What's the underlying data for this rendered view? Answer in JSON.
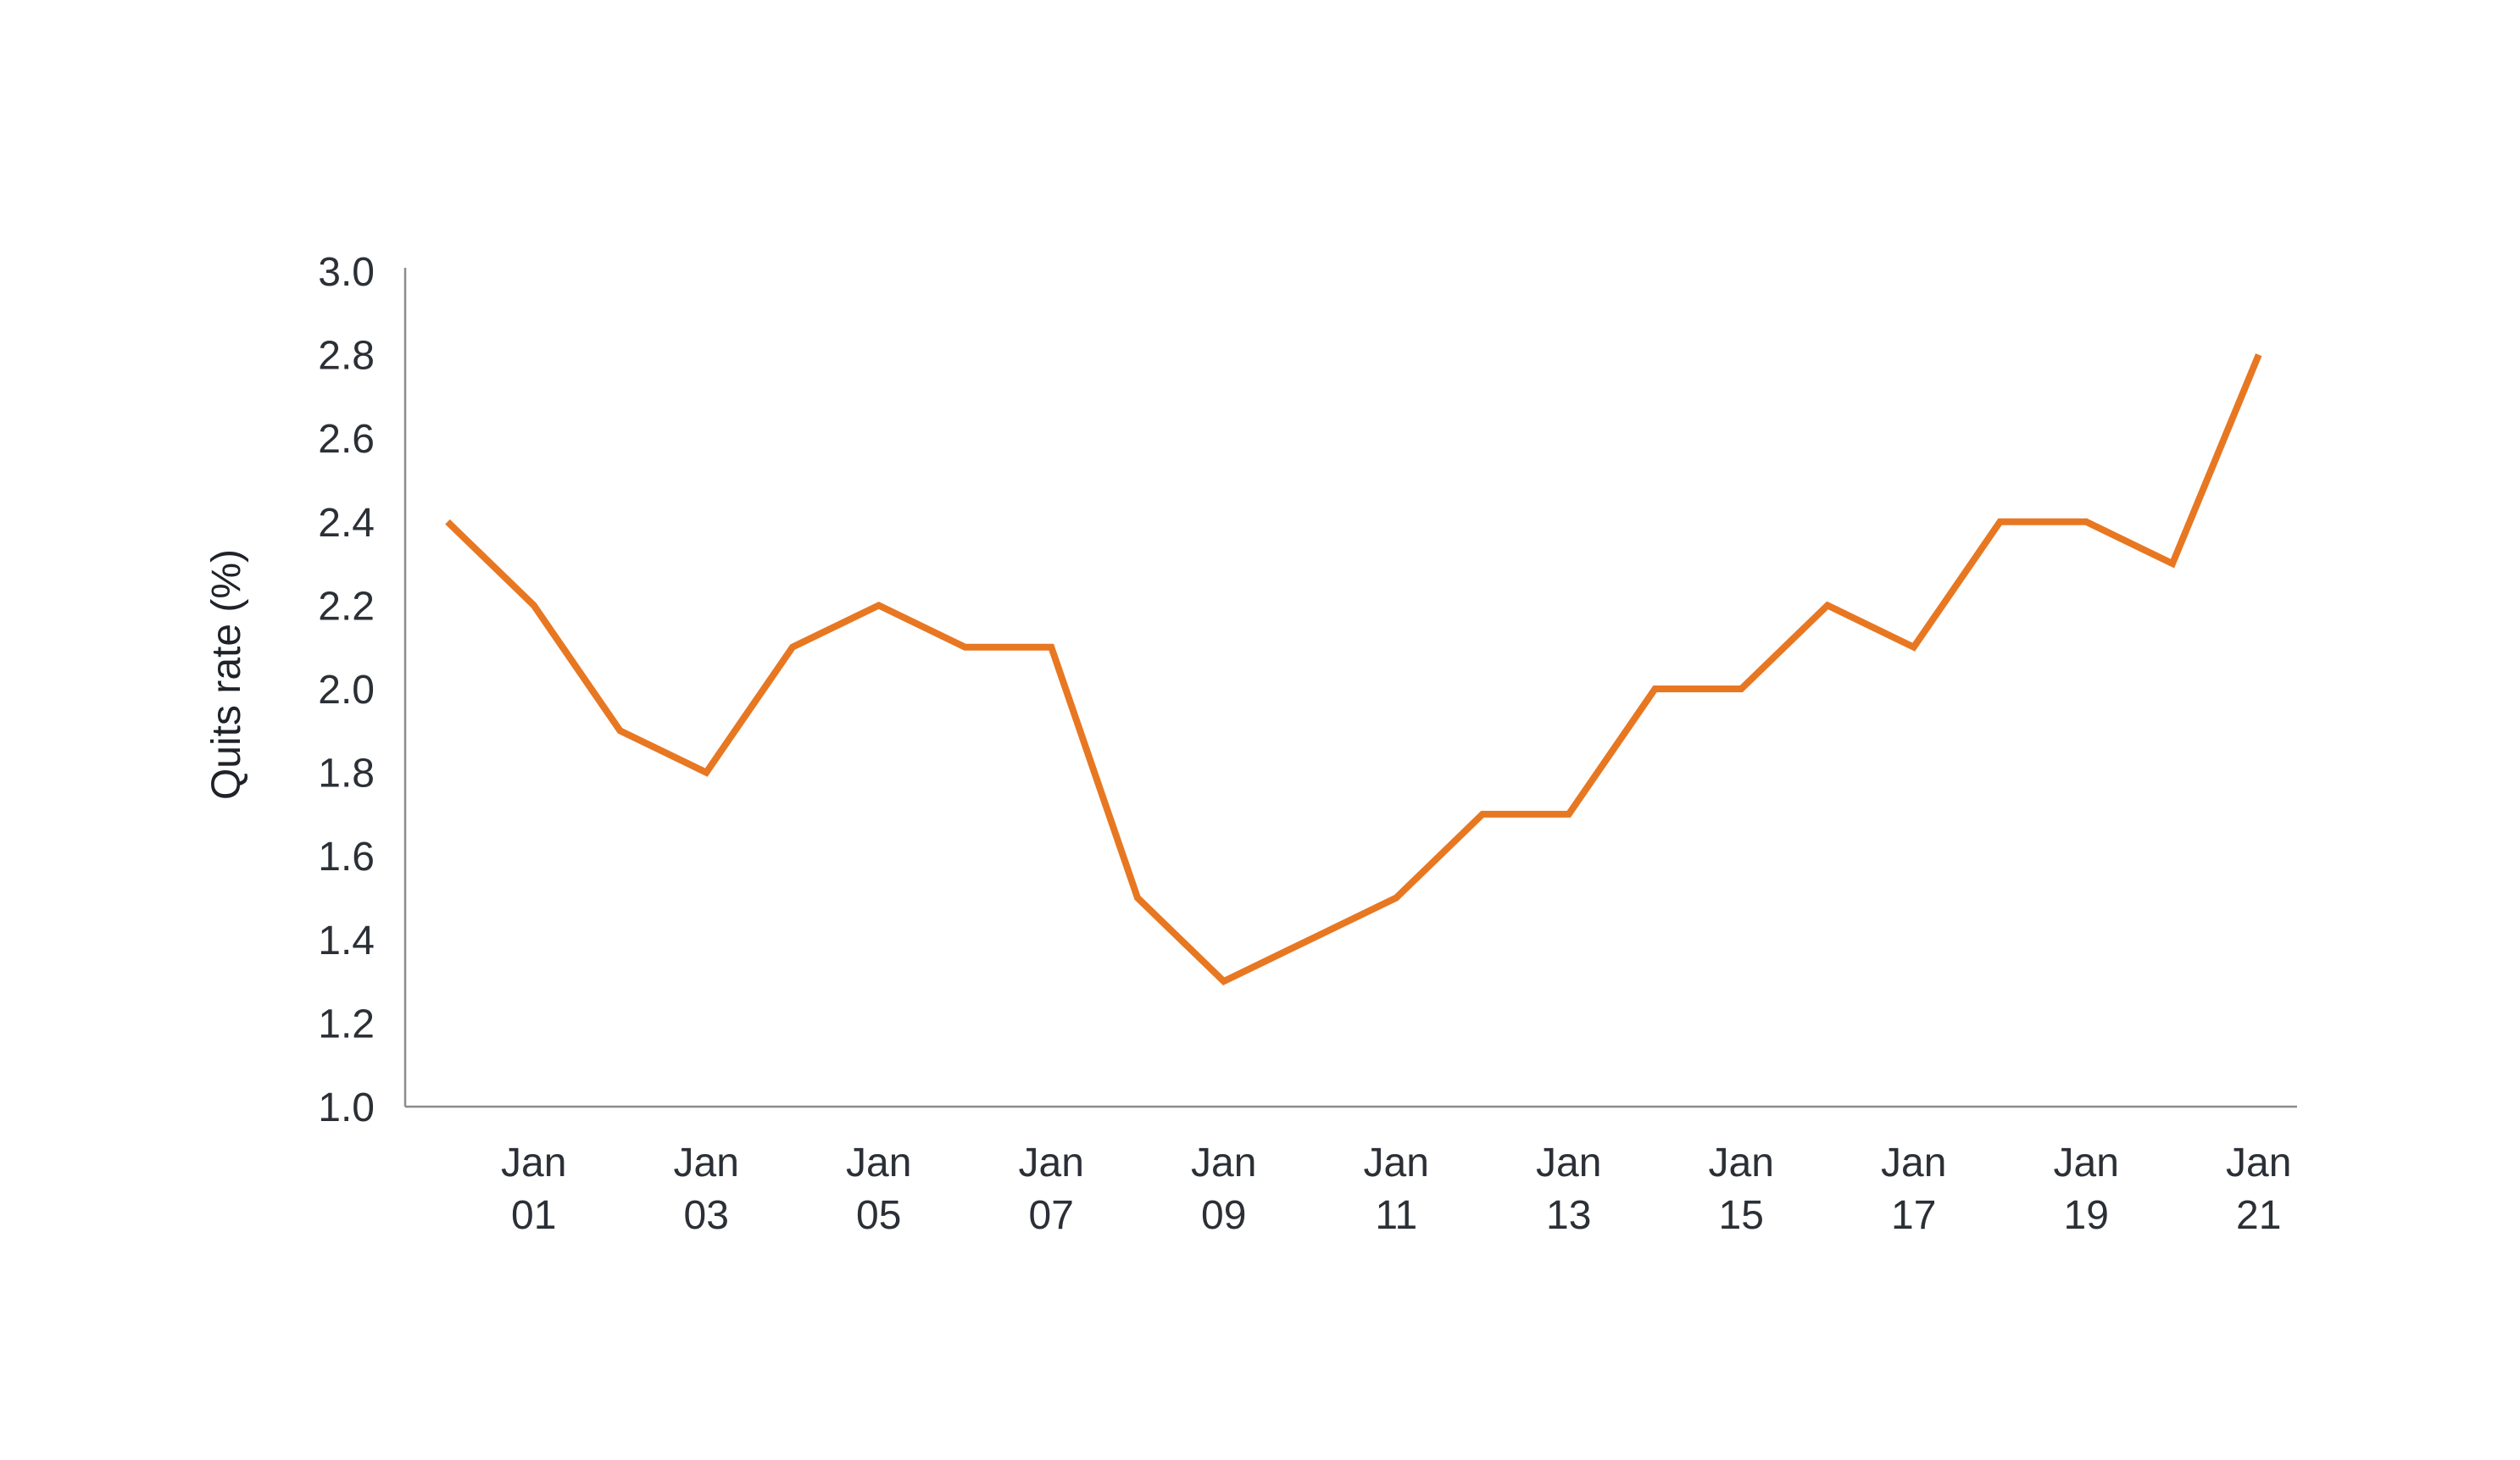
{
  "chart_data": {
    "type": "line",
    "title": "",
    "xlabel": "",
    "ylabel": "Quits rate (%)",
    "ylim": [
      1.0,
      3.0
    ],
    "yticks": [
      "1.0",
      "1.2",
      "1.4",
      "1.6",
      "1.8",
      "2.0",
      "2.2",
      "2.4",
      "2.6",
      "2.8",
      "3.0"
    ],
    "xticks": [
      {
        "month": "Jan",
        "year": "01"
      },
      {
        "month": "Jan",
        "year": "03"
      },
      {
        "month": "Jan",
        "year": "05"
      },
      {
        "month": "Jan",
        "year": "07"
      },
      {
        "month": "Jan",
        "year": "09"
      },
      {
        "month": "Jan",
        "year": "11"
      },
      {
        "month": "Jan",
        "year": "13"
      },
      {
        "month": "Jan",
        "year": "15"
      },
      {
        "month": "Jan",
        "year": "17"
      },
      {
        "month": "Jan",
        "year": "19"
      },
      {
        "month": "Jan",
        "year": "21"
      }
    ],
    "grid": false,
    "legend": "none",
    "series": [
      {
        "color": "#e87722",
        "x": [
          "Jan 00",
          "Jan 01",
          "Jan 02",
          "Jan 03",
          "Jan 04",
          "Jan 05",
          "Jan 06",
          "Jan 07",
          "Jan 08",
          "Jan 09",
          "Jan 10",
          "Jan 11",
          "Jan 12",
          "Jan 13",
          "Jan 14",
          "Jan 15",
          "Jan 16",
          "Jan 17",
          "Jan 18",
          "Jan 19",
          "Jan 20",
          "Jan 21"
        ],
        "values": [
          2.4,
          2.2,
          1.9,
          1.8,
          2.1,
          2.2,
          2.1,
          2.1,
          1.5,
          1.3,
          1.4,
          1.5,
          1.7,
          1.7,
          2.0,
          2.0,
          2.2,
          2.1,
          2.4,
          2.4,
          2.3,
          2.8
        ]
      }
    ]
  }
}
